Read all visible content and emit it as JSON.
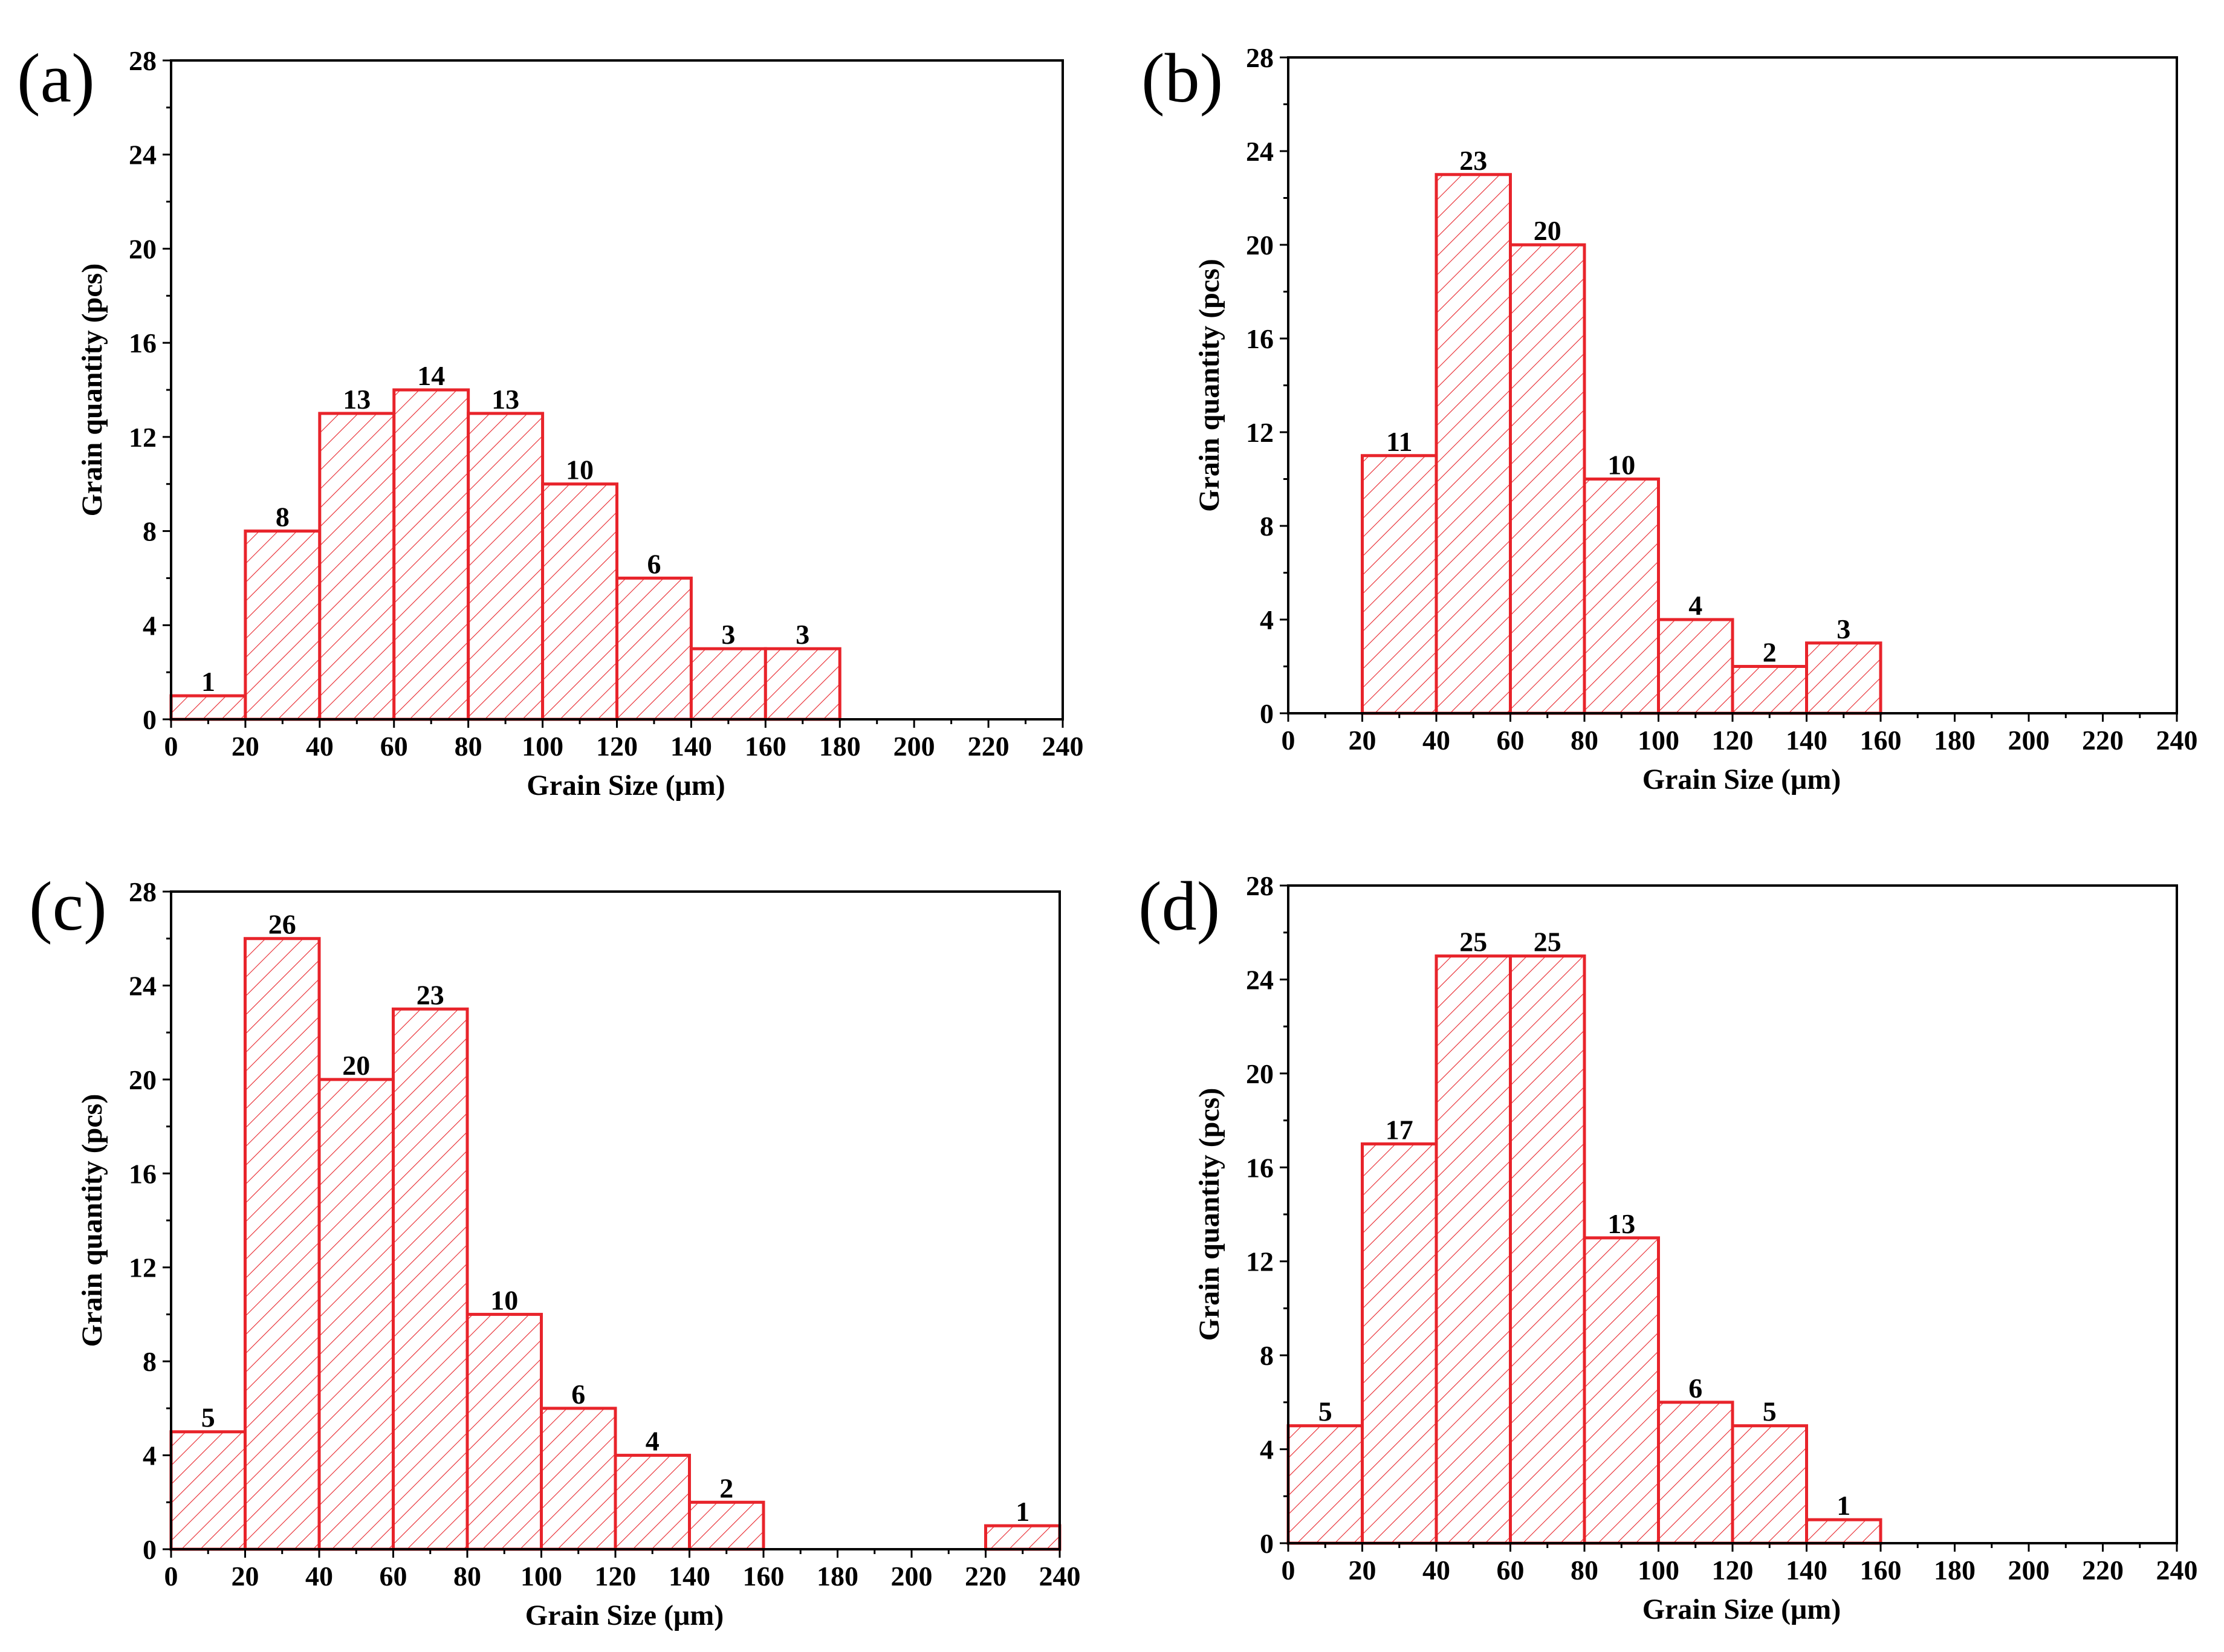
{
  "chart_data": [
    {
      "type": "bar",
      "panel": "(a)",
      "bin_edges": [
        0,
        20,
        40,
        60,
        80,
        100,
        120,
        140,
        160,
        180,
        200,
        220,
        240
      ],
      "values": [
        1,
        8,
        13,
        14,
        13,
        10,
        6,
        3,
        3,
        0,
        0,
        0
      ],
      "data_labels": [
        "1",
        "8",
        "13",
        "14",
        "13",
        "10",
        "6",
        "3",
        "3",
        "",
        "",
        ""
      ],
      "xlabel": "Grain Size (μm)",
      "ylabel": "Grain quantity (pcs)",
      "xlim": [
        0,
        240
      ],
      "ylim": [
        0,
        28
      ],
      "xticks": [
        "0",
        "20",
        "40",
        "60",
        "80",
        "100",
        "120",
        "140",
        "160",
        "180",
        "200",
        "220",
        "240"
      ],
      "yticks": [
        "0",
        "4",
        "8",
        "12",
        "16",
        "20",
        "24",
        "28"
      ],
      "bar_color": "#e8242b",
      "fill": "diagonal-hatch"
    },
    {
      "type": "bar",
      "panel": "(b)",
      "bin_edges": [
        0,
        20,
        40,
        60,
        80,
        100,
        120,
        140,
        160,
        180,
        200,
        220,
        240
      ],
      "values": [
        0,
        11,
        23,
        20,
        10,
        4,
        2,
        3,
        0,
        0,
        0,
        0
      ],
      "data_labels": [
        "",
        "11",
        "23",
        "20",
        "10",
        "4",
        "2",
        "3",
        "",
        "",
        "",
        ""
      ],
      "xlabel": "Grain Size (μm)",
      "ylabel": "Grain quantity (pcs)",
      "xlim": [
        0,
        240
      ],
      "ylim": [
        0,
        28
      ],
      "xticks": [
        "0",
        "20",
        "40",
        "60",
        "80",
        "100",
        "120",
        "140",
        "160",
        "180",
        "200",
        "220",
        "240"
      ],
      "yticks": [
        "0",
        "4",
        "8",
        "12",
        "16",
        "20",
        "24",
        "28"
      ],
      "bar_color": "#e8242b",
      "fill": "diagonal-hatch"
    },
    {
      "type": "bar",
      "panel": "(c)",
      "bin_edges": [
        0,
        20,
        40,
        60,
        80,
        100,
        120,
        140,
        160,
        180,
        200,
        220,
        240
      ],
      "values": [
        5,
        26,
        20,
        23,
        10,
        6,
        4,
        2,
        0,
        0,
        0,
        1
      ],
      "data_labels": [
        "5",
        "26",
        "20",
        "23",
        "10",
        "6",
        "4",
        "2",
        "",
        "",
        "",
        "1"
      ],
      "xlabel": "Grain Size (μm)",
      "ylabel": "Grain quantity (pcs)",
      "xlim": [
        0,
        240
      ],
      "ylim": [
        0,
        28
      ],
      "xticks": [
        "0",
        "20",
        "40",
        "60",
        "80",
        "100",
        "120",
        "140",
        "160",
        "180",
        "200",
        "220",
        "240"
      ],
      "yticks": [
        "0",
        "4",
        "8",
        "12",
        "16",
        "20",
        "24",
        "28"
      ],
      "bar_color": "#e8242b",
      "fill": "diagonal-hatch"
    },
    {
      "type": "bar",
      "panel": "(d)",
      "bin_edges": [
        0,
        20,
        40,
        60,
        80,
        100,
        120,
        140,
        160,
        180,
        200,
        220,
        240
      ],
      "values": [
        5,
        17,
        25,
        25,
        13,
        6,
        5,
        1,
        0,
        0,
        0,
        0
      ],
      "data_labels": [
        "5",
        "17",
        "25",
        "25",
        "13",
        "6",
        "5",
        "1",
        "",
        "",
        "",
        ""
      ],
      "xlabel": "Grain Size (μm)",
      "ylabel": "Grain quantity (pcs)",
      "xlim": [
        0,
        240
      ],
      "ylim": [
        0,
        28
      ],
      "xticks": [
        "0",
        "20",
        "40",
        "60",
        "80",
        "100",
        "120",
        "140",
        "160",
        "180",
        "200",
        "220",
        "240"
      ],
      "yticks": [
        "0",
        "4",
        "8",
        "12",
        "16",
        "20",
        "24",
        "28"
      ],
      "bar_color": "#e8242b",
      "fill": "diagonal-hatch"
    }
  ]
}
